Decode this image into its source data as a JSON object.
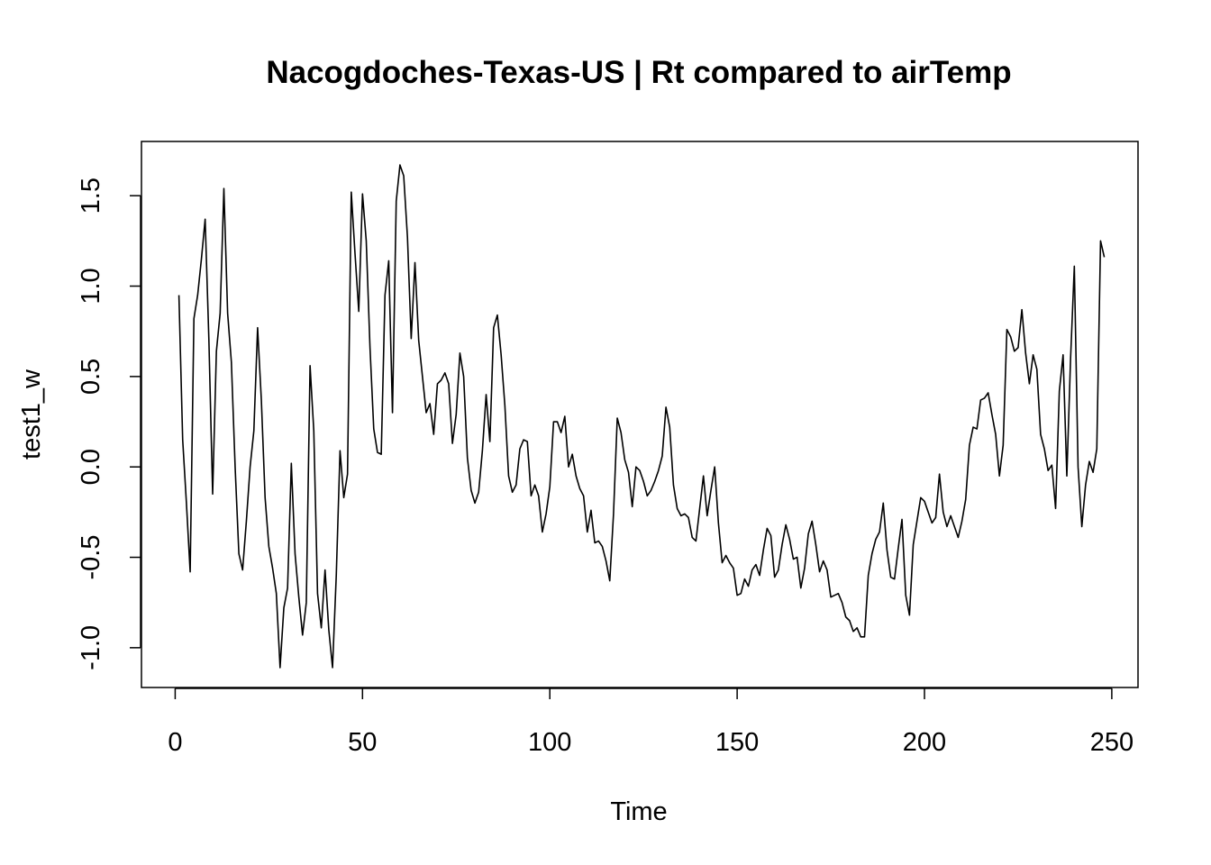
{
  "chart_data": {
    "type": "line",
    "title": "Nacogdoches-Texas-US | Rt compared to airTemp",
    "xlabel": "Time",
    "ylabel": "test1_w",
    "xlim": [
      -9,
      257
    ],
    "ylim": [
      -1.22,
      1.8
    ],
    "xticks": [
      0,
      50,
      100,
      150,
      200,
      250
    ],
    "yticks": [
      -1.0,
      -0.5,
      0.0,
      0.5,
      1.0,
      1.5
    ],
    "xtick_labels": [
      "0",
      "50",
      "100",
      "150",
      "200",
      "250"
    ],
    "ytick_labels": [
      "-1.0",
      "-0.5",
      "0.0",
      "0.5",
      "1.0",
      "1.5"
    ],
    "grid": false,
    "legend": "none",
    "line_color": "#000000",
    "series": [
      {
        "x_start": 1,
        "x_step": 1,
        "values": [
          0.95,
          0.15,
          -0.2,
          -0.58,
          0.82,
          0.95,
          1.15,
          1.37,
          0.7,
          -0.15,
          0.64,
          0.85,
          1.54,
          0.85,
          0.58,
          0.0,
          -0.48,
          -0.57,
          -0.3,
          0.0,
          0.2,
          0.77,
          0.37,
          -0.17,
          -0.44,
          -0.56,
          -0.7,
          -1.11,
          -0.78,
          -0.67,
          0.02,
          -0.48,
          -0.72,
          -0.93,
          -0.75,
          0.56,
          0.2,
          -0.7,
          -0.89,
          -0.57,
          -0.9,
          -1.11,
          -0.6,
          0.09,
          -0.17,
          -0.04,
          1.52,
          1.18,
          0.86,
          1.51,
          1.25,
          0.66,
          0.21,
          0.08,
          0.07,
          0.95,
          1.14,
          0.3,
          1.47,
          1.67,
          1.61,
          1.27,
          0.71,
          1.13,
          0.7,
          0.5,
          0.3,
          0.35,
          0.18,
          0.46,
          0.48,
          0.52,
          0.46,
          0.13,
          0.29,
          0.63,
          0.5,
          0.05,
          -0.13,
          -0.2,
          -0.14,
          0.09,
          0.4,
          0.14,
          0.77,
          0.84,
          0.62,
          0.34,
          -0.05,
          -0.14,
          -0.1,
          0.1,
          0.15,
          0.14,
          -0.16,
          -0.1,
          -0.16,
          -0.36,
          -0.26,
          -0.11,
          0.25,
          0.25,
          0.19,
          0.28,
          0.0,
          0.07,
          -0.05,
          -0.12,
          -0.16,
          -0.36,
          -0.24,
          -0.42,
          -0.41,
          -0.44,
          -0.52,
          -0.63,
          -0.26,
          0.27,
          0.19,
          0.04,
          -0.03,
          -0.22,
          0.0,
          -0.02,
          -0.08,
          -0.16,
          -0.13,
          -0.08,
          -0.02,
          0.06,
          0.33,
          0.22,
          -0.1,
          -0.23,
          -0.27,
          -0.26,
          -0.28,
          -0.39,
          -0.41,
          -0.23,
          -0.05,
          -0.27,
          -0.13,
          0.0,
          -0.31,
          -0.53,
          -0.49,
          -0.53,
          -0.56,
          -0.71,
          -0.7,
          -0.62,
          -0.66,
          -0.57,
          -0.54,
          -0.6,
          -0.46,
          -0.34,
          -0.38,
          -0.61,
          -0.57,
          -0.43,
          -0.32,
          -0.4,
          -0.51,
          -0.5,
          -0.67,
          -0.56,
          -0.37,
          -0.3,
          -0.43,
          -0.58,
          -0.52,
          -0.57,
          -0.72,
          -0.71,
          -0.7,
          -0.75,
          -0.83,
          -0.85,
          -0.91,
          -0.89,
          -0.94,
          -0.94,
          -0.6,
          -0.48,
          -0.4,
          -0.36,
          -0.2,
          -0.46,
          -0.61,
          -0.62,
          -0.45,
          -0.29,
          -0.71,
          -0.82,
          -0.43,
          -0.3,
          -0.17,
          -0.19,
          -0.25,
          -0.31,
          -0.28,
          -0.04,
          -0.25,
          -0.33,
          -0.27,
          -0.33,
          -0.39,
          -0.3,
          -0.18,
          0.12,
          0.22,
          0.21,
          0.37,
          0.38,
          0.41,
          0.29,
          0.18,
          -0.05,
          0.12,
          0.76,
          0.72,
          0.64,
          0.66,
          0.87,
          0.63,
          0.46,
          0.62,
          0.54,
          0.18,
          0.1,
          -0.02,
          0.01,
          -0.23,
          0.42,
          0.62,
          -0.05,
          0.6,
          1.11,
          0.0,
          -0.33,
          -0.1,
          0.03,
          -0.03,
          0.1,
          1.25,
          1.16
        ]
      }
    ]
  }
}
